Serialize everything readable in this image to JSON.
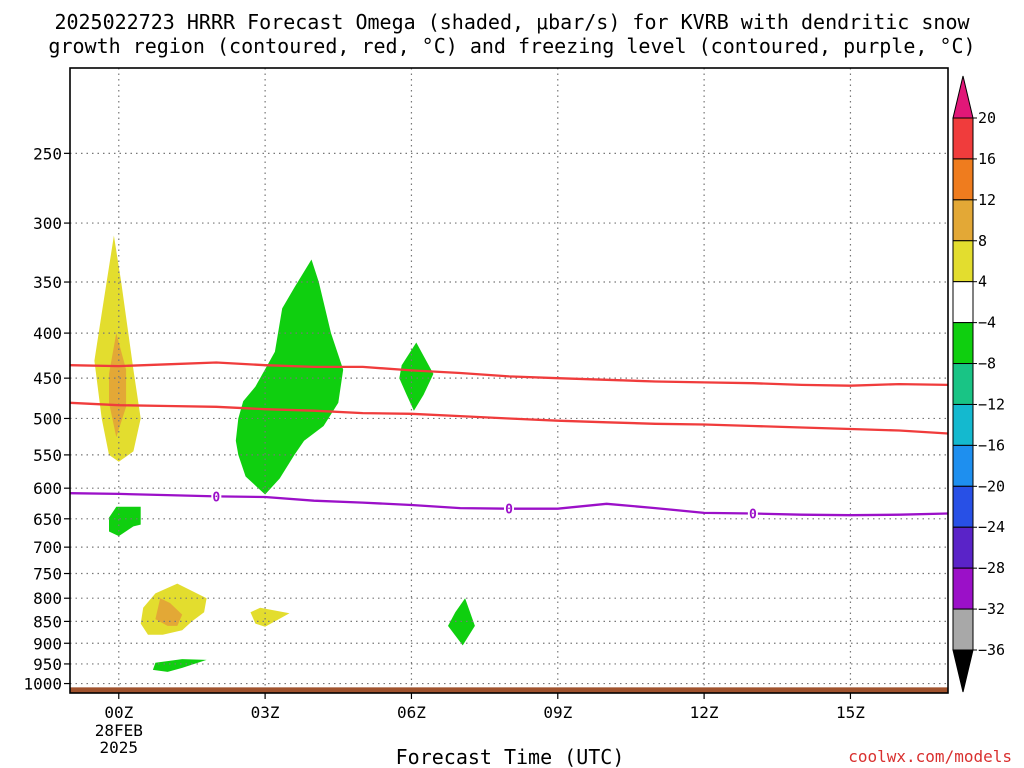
{
  "title": {
    "line1": "2025022723 HRRR Forecast Omega (shaded, μbar/s) for KVRB with dendritic snow",
    "line2": "growth region (contoured, red, °C) and freezing level (contoured, purple, °C)"
  },
  "credit": "coolwx.com/models",
  "chart_data": {
    "type": "contour",
    "xlabel": "Forecast Time (UTC)",
    "ylabel": "",
    "x_range_hours": [
      -1,
      17
    ],
    "x_ticks": [
      {
        "hour": 0,
        "label": "00Z",
        "sub": [
          "28FEB",
          "2025"
        ]
      },
      {
        "hour": 3,
        "label": "03Z"
      },
      {
        "hour": 6,
        "label": "06Z"
      },
      {
        "hour": 9,
        "label": "09Z"
      },
      {
        "hour": 12,
        "label": "12Z"
      },
      {
        "hour": 15,
        "label": "15Z"
      }
    ],
    "y_axis_pressure_hPa": {
      "range": [
        200,
        1025
      ],
      "scale": "log",
      "ticks": [
        250,
        300,
        350,
        400,
        450,
        500,
        550,
        600,
        650,
        700,
        750,
        800,
        850,
        900,
        950,
        1000
      ]
    },
    "ground_level_hPa": 1010,
    "colorbar": {
      "labels": [
        "20",
        "16",
        "12",
        "8",
        "4",
        "−4",
        "−8",
        "−12",
        "−16",
        "−20",
        "−24",
        "−28",
        "−32",
        "−36"
      ],
      "colors": [
        "#e11778",
        "#f03c3c",
        "#ef7c1e",
        "#e3a836",
        "#e3dd2e",
        "#ffffff",
        "#0fcf0f",
        "#19c485",
        "#14b9cf",
        "#1e8fef",
        "#2850e6",
        "#5a23c8",
        "#9b10c8",
        "#a8a8a8",
        "#000000"
      ]
    },
    "shaded_regions": [
      {
        "name": "omega-positive-4-8",
        "color": "#e3dd2e",
        "points": [
          [
            -0.2,
            550
          ],
          [
            -0.35,
            500
          ],
          [
            -0.5,
            430
          ],
          [
            -0.35,
            380
          ],
          [
            -0.1,
            310
          ],
          [
            0.05,
            350
          ],
          [
            0.3,
            440
          ],
          [
            0.45,
            500
          ],
          [
            0.3,
            545
          ],
          [
            0.0,
            560
          ]
        ]
      },
      {
        "name": "omega-positive-8-12",
        "color": "#e3a836",
        "points": [
          [
            -0.05,
            525
          ],
          [
            -0.2,
            480
          ],
          [
            -0.2,
            445
          ],
          [
            -0.05,
            400
          ],
          [
            0.15,
            440
          ],
          [
            0.15,
            485
          ]
        ]
      },
      {
        "name": "omega-positive-4-8",
        "color": "#e3dd2e",
        "points": [
          [
            0.45,
            855
          ],
          [
            0.5,
            820
          ],
          [
            0.75,
            790
          ],
          [
            1.2,
            770
          ],
          [
            1.8,
            800
          ],
          [
            1.75,
            830
          ],
          [
            1.5,
            850
          ],
          [
            1.3,
            870
          ],
          [
            0.9,
            880
          ],
          [
            0.6,
            880
          ]
        ]
      },
      {
        "name": "omega-positive-8-12",
        "color": "#e3a836",
        "points": [
          [
            0.75,
            845
          ],
          [
            0.85,
            800
          ],
          [
            1.05,
            810
          ],
          [
            1.3,
            835
          ],
          [
            1.2,
            860
          ],
          [
            1.0,
            860
          ]
        ]
      },
      {
        "name": "omega-positive-4-8",
        "color": "#e3dd2e",
        "points": [
          [
            2.7,
            830
          ],
          [
            2.9,
            820
          ],
          [
            3.5,
            832
          ],
          [
            3.0,
            862
          ],
          [
            2.8,
            855
          ]
        ]
      },
      {
        "name": "omega-negative-4-8",
        "color": "#0fcf0f",
        "points": [
          [
            3.0,
            610
          ],
          [
            2.6,
            582
          ],
          [
            2.45,
            550
          ],
          [
            2.4,
            530
          ],
          [
            2.45,
            500
          ],
          [
            2.55,
            478
          ],
          [
            2.8,
            460
          ],
          [
            3.2,
            420
          ],
          [
            3.35,
            375
          ],
          [
            3.6,
            355
          ],
          [
            3.95,
            330
          ],
          [
            4.1,
            350
          ],
          [
            4.35,
            400
          ],
          [
            4.6,
            440
          ],
          [
            4.5,
            480
          ],
          [
            4.2,
            510
          ],
          [
            3.8,
            530
          ],
          [
            3.6,
            550
          ],
          [
            3.3,
            585
          ]
        ]
      },
      {
        "name": "omega-negative-4-8",
        "color": "#0fcf0f",
        "points": [
          [
            -0.2,
            672
          ],
          [
            -0.2,
            648
          ],
          [
            -0.05,
            630
          ],
          [
            0.45,
            630
          ],
          [
            0.45,
            660
          ],
          [
            0.3,
            663
          ],
          [
            0.0,
            680
          ]
        ]
      },
      {
        "name": "omega-negative-4-8",
        "color": "#0fcf0f",
        "points": [
          [
            0.7,
            965
          ],
          [
            0.75,
            947
          ],
          [
            1.3,
            938
          ],
          [
            1.8,
            940
          ],
          [
            1.3,
            960
          ],
          [
            1.0,
            970
          ]
        ]
      },
      {
        "name": "omega-negative-4-8",
        "color": "#0fcf0f",
        "points": [
          [
            5.75,
            450
          ],
          [
            5.8,
            435
          ],
          [
            6.1,
            410
          ],
          [
            6.45,
            445
          ],
          [
            6.25,
            470
          ],
          [
            6.05,
            490
          ],
          [
            5.9,
            470
          ]
        ]
      },
      {
        "name": "omega-negative-4-8",
        "color": "#0fcf0f",
        "points": [
          [
            6.75,
            860
          ],
          [
            6.9,
            830
          ],
          [
            7.1,
            800
          ],
          [
            7.3,
            860
          ],
          [
            7.05,
            905
          ]
        ]
      }
    ],
    "series": [
      {
        "name": "dendritic-upper",
        "color": "#f03c3c",
        "points": [
          [
            -1,
            435
          ],
          [
            0,
            436
          ],
          [
            1,
            434
          ],
          [
            2,
            432
          ],
          [
            3,
            435
          ],
          [
            4,
            437
          ],
          [
            5,
            437
          ],
          [
            6,
            441
          ],
          [
            7,
            444
          ],
          [
            8,
            448
          ],
          [
            9,
            450
          ],
          [
            10,
            452
          ],
          [
            11,
            454
          ],
          [
            12,
            455
          ],
          [
            13,
            456
          ],
          [
            14,
            458
          ],
          [
            15,
            459
          ],
          [
            16,
            457
          ],
          [
            17,
            458
          ]
        ]
      },
      {
        "name": "dendritic-lower",
        "color": "#f03c3c",
        "points": [
          [
            -1,
            480
          ],
          [
            0,
            483
          ],
          [
            1,
            484
          ],
          [
            2,
            485
          ],
          [
            3,
            488
          ],
          [
            4,
            490
          ],
          [
            5,
            493
          ],
          [
            6,
            494
          ],
          [
            7,
            497
          ],
          [
            8,
            500
          ],
          [
            9,
            503
          ],
          [
            10,
            505
          ],
          [
            11,
            507
          ],
          [
            12,
            508
          ],
          [
            13,
            510
          ],
          [
            14,
            512
          ],
          [
            15,
            514
          ],
          [
            16,
            516
          ],
          [
            17,
            520
          ]
        ]
      },
      {
        "name": "freezing-level",
        "color": "#9b10c8",
        "points": [
          [
            -1,
            608
          ],
          [
            0,
            609
          ],
          [
            1,
            611
          ],
          [
            2,
            613
          ],
          [
            3,
            614
          ],
          [
            4,
            620
          ],
          [
            5,
            623
          ],
          [
            6,
            627
          ],
          [
            7,
            632
          ],
          [
            8,
            633
          ],
          [
            9,
            633
          ],
          [
            10,
            625
          ],
          [
            11,
            632
          ],
          [
            12,
            640
          ],
          [
            13,
            641
          ],
          [
            14,
            643
          ],
          [
            15,
            644
          ],
          [
            16,
            643
          ],
          [
            17,
            641
          ]
        ]
      }
    ],
    "contour_labels": [
      {
        "series": "freezing-level",
        "text": "0",
        "hour": 2.0,
        "p": 613
      },
      {
        "series": "freezing-level",
        "text": "0",
        "hour": 8.0,
        "p": 633
      },
      {
        "series": "freezing-level",
        "text": "0",
        "hour": 13.0,
        "p": 641
      }
    ]
  }
}
